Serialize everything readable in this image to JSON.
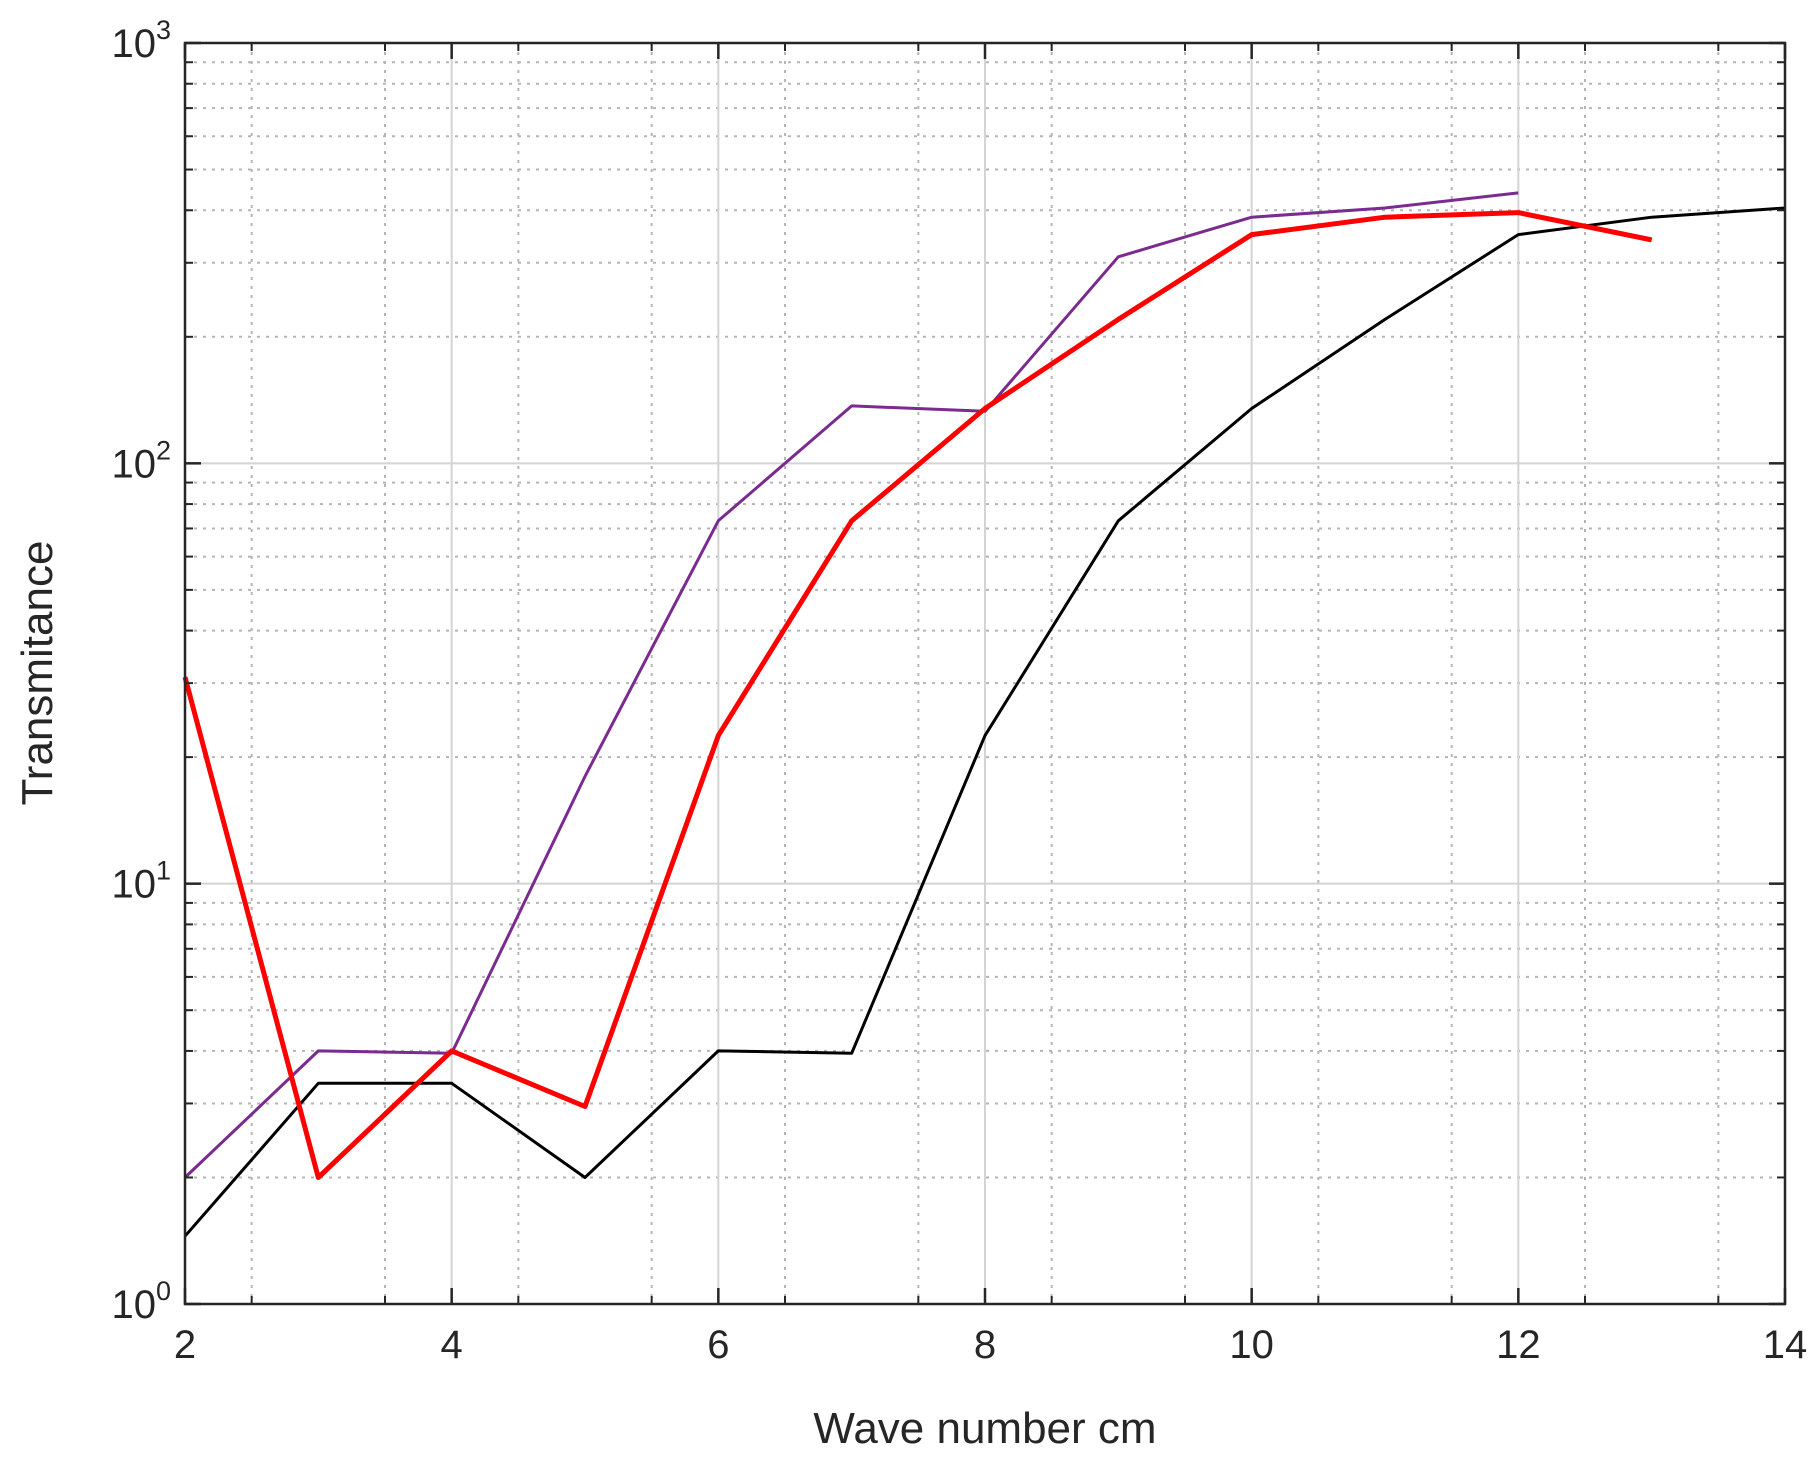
{
  "chart_data": {
    "type": "line",
    "xlabel": "Wave number cm",
    "ylabel": "Transmitance",
    "xlim": [
      2,
      14
    ],
    "ylim": [
      1,
      1000
    ],
    "yscale": "log",
    "grid": "major-and-minor",
    "x_ticks": [
      "2",
      "4",
      "6",
      "8",
      "10",
      "12",
      "14"
    ],
    "y_ticks": [
      {
        "base": "10",
        "exp": "0"
      },
      {
        "base": "10",
        "exp": "1"
      },
      {
        "base": "10",
        "exp": "2"
      },
      {
        "base": "10",
        "exp": "3"
      }
    ],
    "series": [
      {
        "color": "#000000",
        "width": 3,
        "x": [
          2,
          3,
          4,
          5,
          6,
          7,
          8,
          9,
          10,
          11,
          12,
          13,
          14
        ],
        "y": [
          1.45,
          3.35,
          3.35,
          2.0,
          4.0,
          3.95,
          22.5,
          73,
          135,
          220,
          350,
          385,
          405
        ]
      },
      {
        "color": "#7b2a8f",
        "width": 3,
        "x": [
          2,
          3,
          4,
          5,
          6,
          7,
          8,
          9,
          10,
          11,
          12
        ],
        "y": [
          2.0,
          4.0,
          3.95,
          18,
          73,
          137,
          133,
          310,
          385,
          405,
          440
        ]
      },
      {
        "color": "#ff0000",
        "width": 5,
        "x": [
          2,
          3,
          4,
          5,
          6,
          7,
          8,
          9,
          10,
          11,
          12,
          13
        ],
        "y": [
          31,
          2.0,
          4.0,
          2.95,
          22.5,
          73,
          135,
          220,
          350,
          385,
          395,
          340
        ]
      }
    ]
  }
}
